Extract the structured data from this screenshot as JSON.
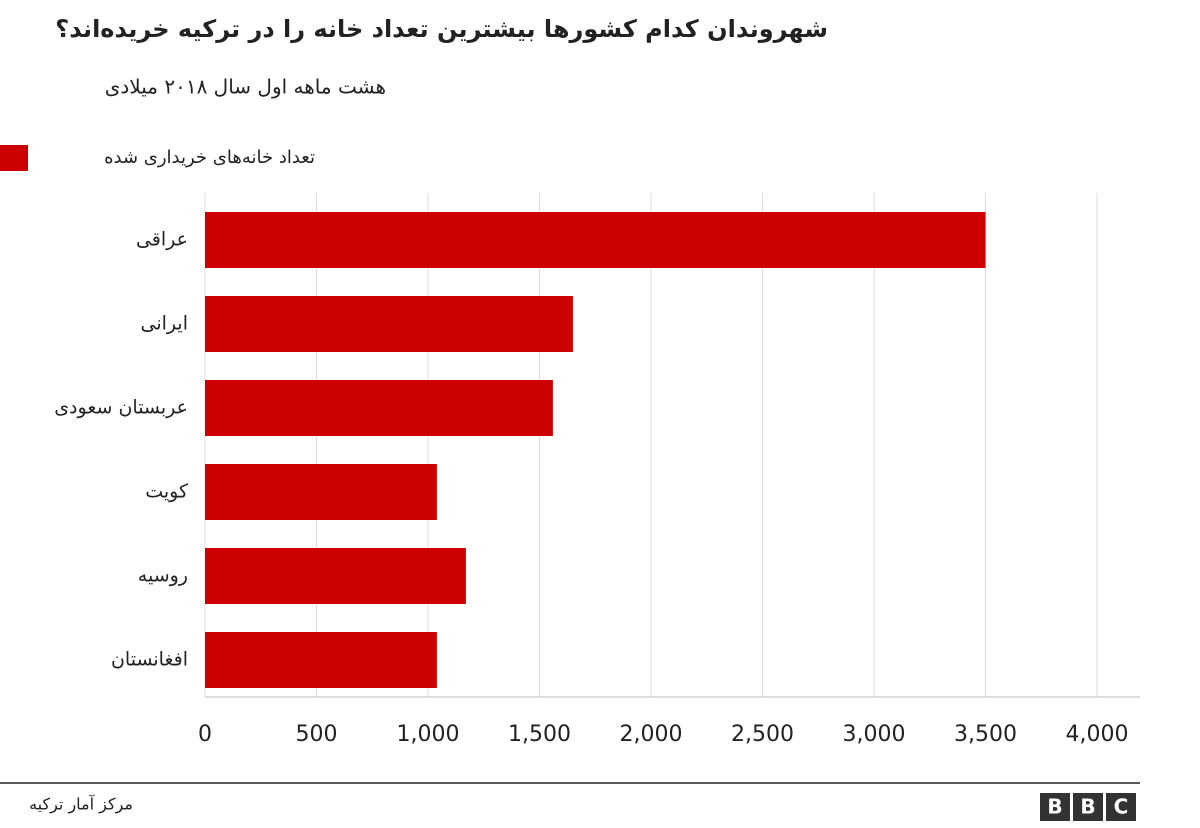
{
  "chart_data": {
    "type": "bar",
    "orientation": "horizontal",
    "title": "شهروندان کدام کشورها بیشترین تعداد خانه را در ترکیه خریده‌اند؟",
    "subtitle": "هشت ماهه اول سال ۲۰۱۸ میلادی",
    "categories": [
      "عراقی",
      "ایرانی",
      "عربستان سعودی",
      "کویت",
      "روسیه",
      "افغانستان"
    ],
    "series": [
      {
        "name": "تعداد خانه‌های خریداری شده",
        "color": "#cc0000",
        "values": [
          3500,
          1650,
          1560,
          1040,
          1170,
          1040
        ]
      }
    ],
    "xlim": [
      0,
      4000
    ],
    "xticks": [
      0,
      500,
      {
        "value": 1000,
        "label": "1,000"
      },
      {
        "value": 1500,
        "label": "1,500"
      },
      {
        "value": 2000,
        "label": "2,000"
      },
      {
        "value": 2500,
        "label": "2,500"
      },
      {
        "value": 3000,
        "label": "3,000"
      },
      {
        "value": 3500,
        "label": "3,500"
      },
      {
        "value": 4000,
        "label": "4,000"
      }
    ],
    "grid": true,
    "source": "مرکز آمار ترکیه",
    "logo": [
      "B",
      "B",
      "C"
    ]
  }
}
